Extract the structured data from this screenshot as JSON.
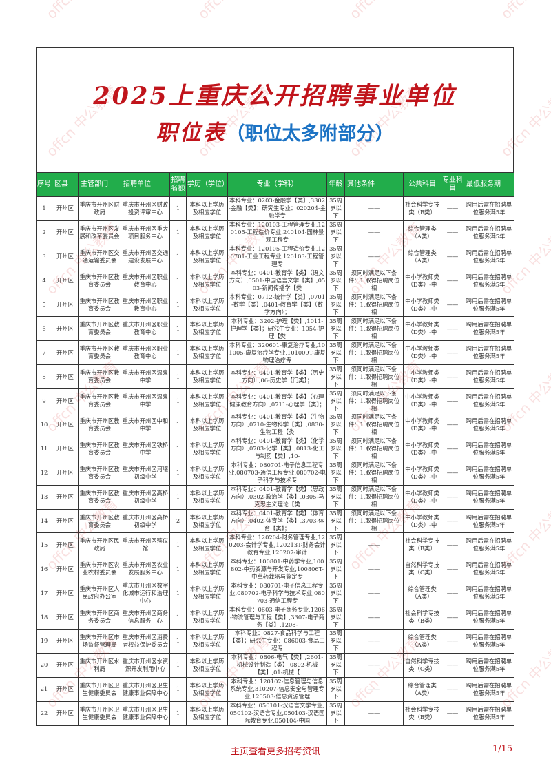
{
  "title": {
    "line1": "2025上重庆公开招聘事业单位",
    "line2": "职位表",
    "subtitle": "（职位太多附部分）"
  },
  "colors": {
    "header_green": "#22ad4b",
    "title_red": "#c0141b",
    "subtitle_blue": "#1d73c4"
  },
  "watermark": "offcn 中公教育",
  "table": {
    "headers": [
      "序号",
      "区县",
      "主管部门",
      "招聘单位",
      "招聘名额",
      "学历（学位）",
      "专业（学科）",
      "年龄",
      "其他条件",
      "公共科目",
      "专业科目",
      "最低服务期"
    ],
    "rows": [
      [
        "1",
        "开州区",
        "重庆市开州区财政局",
        "重庆市开州区财政投资评审中心",
        "1",
        "本科以上学历及相应学位",
        "本科专业：0203-金融学【类】,3302-金融【类】；研究生专业：020204-金融学专",
        "35周岁以下",
        "——",
        "社会科学专技类（B类）",
        "——",
        "聘用后需在招聘单位服务满5年"
      ],
      [
        "2",
        "开州区",
        "重庆市开州区发展和改革委员会",
        "重庆市开州区重大项目服务中心",
        "1",
        "本科以上学历及相应学位",
        "本科专业：120103-工程管理专业,120105-工程造价专业,240104-园林景观工程专",
        "35周岁以下",
        "——",
        "综合管理类（A类）",
        "——",
        "聘用后需在招聘单位服务满5年"
      ],
      [
        "3",
        "开州区",
        "重庆市开州区交通运输委员会",
        "重庆市开州区交通建设发展中心",
        "1",
        "本科以上学历及相应学位",
        "本科专业：120105-工程造价专业,120701-工业工程专业,120103-工程管理专",
        "35周岁以下",
        "——",
        "综合管理类（A类）",
        "——",
        "聘用后需在招聘单位服务满5年"
      ],
      [
        "4",
        "开州区",
        "重庆市开州区教育委员会",
        "重庆市开州区职业教育中心",
        "1",
        "本科以上学历及相应学位",
        "本科专业：0401-教育学【类】（语文方向）,0501-中国语言文学【类】,0503-新闻传播学【类",
        "35周岁以下",
        "须同时满足以下条件：1.取得招聘岗位相",
        "中小学教师类（D类）-中",
        "——",
        "聘用后需在招聘单位服务满5年"
      ],
      [
        "5",
        "开州区",
        "重庆市开州区教育委员会",
        "重庆市开州区职业教育中心",
        "1",
        "本科以上学历及相应学位",
        "本科专业：0712-统计学【类】,0701-数学【类】,0401-教育学【类】（数学方向）；",
        "35周岁以下",
        "须同时满足以下条件：1.取得招聘岗位相",
        "中小学教师类（D类）-中",
        "——",
        "聘用后需在招聘单位服务满5年"
      ],
      [
        "6",
        "开州区",
        "重庆市开州区教育委员会",
        "重庆市开州区职业教育中心",
        "1",
        "本科以上学历及相应学位",
        "本科专业：3202-护理【类】,1011-护理学【类】；研究生专业：1054-护理【类",
        "35周岁以下",
        "须同时满足以下条件：1.取得招聘岗位相",
        "中小学教师类（D类）-中",
        "——",
        "聘用后需在招聘单位服务满5年"
      ],
      [
        "7",
        "开州区",
        "重庆市开州区教育委员会",
        "重庆市开州区职业教育中心",
        "1",
        "本科以上学历及相应学位",
        "本科专业：320601-康复治疗专业,101005-康复治疗学专业,101009T-康复物理治疗专",
        "35周岁以下",
        "须同时满足以下条件：1.取得招聘岗位相",
        "中小学教师类（D类）-中",
        "——",
        "聘用后需在招聘单位服务满5年"
      ],
      [
        "8",
        "开州区",
        "重庆市开州区教育委员会",
        "重庆市开州区温泉中学",
        "1",
        "本科以上学历及相应学位",
        "本科专业：0401-教育学【类】（历史方向）,06-历史学【门类】；",
        "35周岁以下",
        "须同时满足以下条件：1.取得招聘岗位相",
        "中小学教师类（D类）-中",
        "——",
        "聘用后需在招聘单位服务满5年"
      ],
      [
        "9",
        "开州区",
        "重庆市开州区教育委员会",
        "重庆市开州区温泉中学",
        "1",
        "本科以上学历及相应学位",
        "本科专业：0401-教育学【类】（心理健康教育方向）,0711-心理学【类】；",
        "35周岁以下",
        "须同时满足以下条件：1.取得招聘岗位相",
        "中小学教师类（D类）-中",
        "——",
        "聘用后需在招聘单位服务满5年"
      ],
      [
        "10",
        "开州区",
        "重庆市开州区教育委员会",
        "重庆市开州区中和中学",
        "1",
        "本科以上学历及相应学位",
        "本科专业：0401-教育学【类】（生物方向）,0710-生物科学【类】,0830-生物工程【类",
        "35周岁以下",
        "须同时满足以下条件：1.取得招聘岗位相",
        "中小学教师类（D类）-中",
        "——",
        "聘用后需在招聘单位服务满5年"
      ],
      [
        "11",
        "开州区",
        "重庆市开州区教育委员会",
        "重庆市开州区铁桥中学",
        "1",
        "本科以上学历及相应学位",
        "本科专业：0401-教育学【类】（化学方向）,0703-化学【类】,0813-化工与制药【类】,10-",
        "35周岁以下",
        "须同时满足以下条件：1.取得招聘岗位相",
        "中小学教师类（D类）-中",
        "——",
        "聘用后需在招聘单位服务满5年"
      ],
      [
        "12",
        "开州区",
        "重庆市开州区教育委员会",
        "重庆市开州区河堰初级中学",
        "1",
        "本科以上学历及相应学位",
        "本科专业：080701-电子信息工程专业,080703-通信工程专业,080702-电子科学与技术专",
        "35周岁以下",
        "须同时满足以下条件：1.取得招聘岗位相",
        "中小学教师类（D类）-中",
        "——",
        "聘用后需在招聘单位服务满5年"
      ],
      [
        "13",
        "开州区",
        "重庆市开州区教育委员会",
        "重庆市开州区高桥初级中学",
        "1",
        "本科以上学历及相应学位",
        "本科专业：0401-教育学【类】（思政方向）,0302-政治学【类】,0305-马克思主义理论【类",
        "35周岁以下",
        "须同时满足以下条件：1.取得招聘岗位相",
        "中小学教师类（D类）-中",
        "——",
        "聘用后需在招聘单位服务满5年"
      ],
      [
        "14",
        "开州区",
        "重庆市开州区教育委员会",
        "重庆市开州区高桥初级中学",
        "2",
        "本科以上学历及相应学位",
        "本科专业：0401-教育学【类】（体育方向）,0402-体育学【类】,3703-体育【类】；",
        "35周岁以下",
        "须同时满足以下条件：1.取得招聘岗位相",
        "中小学教师类（D类）-中",
        "——",
        "聘用后需在招聘单位服务满5年"
      ],
      [
        "15",
        "开州区",
        "重庆市开州区民政局",
        "重庆市开州区殡仪馆",
        "1",
        "本科以上学历及相应学位",
        "本科专业：120204-财务管理专业,120203-会计学专业,120213T-财务会计教育专业,120207-审计",
        "35周岁以下",
        "——",
        "社会科学专技类（B类）",
        "——",
        "聘用后需在招聘单位服务满5年"
      ],
      [
        "16",
        "开州区",
        "重庆市开州区农业农村委员会",
        "重庆市开州区农业发展服务中心",
        "1",
        "本科以上学历及相应学位",
        "本科专业：100801-中药学专业,100802-中药资源与开发专业,100806T-中草药栽培与鉴定专",
        "35周岁以下",
        "——",
        "自然科学专技类（C类）",
        "——",
        "聘用后需在招聘单位服务满5年"
      ],
      [
        "17",
        "开州区",
        "重庆市开州区人民政府办公室",
        "重庆市开州区数字化城市运行和治理中心",
        "1",
        "本科以上学历及相应学位",
        "本科专业：080701-电子信息工程专业,080702-电子科学与技术专业,080703-通信工程专",
        "35周岁以下",
        "——",
        "综合管理类（A类）",
        "——",
        "聘用后需在招聘单位服务满5年"
      ],
      [
        "18",
        "开州区",
        "重庆市开州区商务委员会",
        "重庆市开州区商务信息服务中心",
        "1",
        "本科以上学历及相应学位",
        "本科专业：0603-电子商务专业,1206-物流管理与工程【类】,3307-电子商务【类】,1208-",
        "35周岁以下",
        "——",
        "社会科学专技类（B类）",
        "——",
        "聘用后需在招聘单位服务满5年"
      ],
      [
        "19",
        "开州区",
        "重庆市开州区市场监督管理局",
        "重庆市开州区消费者权益保护委员会",
        "1",
        "本科以上学历及相应学位",
        "本科专业：0827-食品科学与工程【类】；研究生专业：086003-食品工程专",
        "35周岁以下",
        "——",
        "综合管理类（A类）",
        "——",
        "聘用后需在招聘单位服务满5年"
      ],
      [
        "20",
        "开州区",
        "重庆市开州区水利局",
        "重庆市开州区水资源开发利用中心",
        "1",
        "本科以上学历及相应学位",
        "本科专业：0806-电气【类】,2601-机械设计制造【类】,0802-机械【类】,01-机械【",
        "35周岁以下",
        "——",
        "自然科学专技类（C类）",
        "——",
        "聘用后需在招聘单位服务满5年"
      ],
      [
        "21",
        "开州区",
        "重庆市开州区卫生健康委员会",
        "重庆市开州区卫生健康事业保障中心",
        "1",
        "本科以上学历及相应学位",
        "本科专业：120102-信息管理与信息系统专业,310207-信息安全与管理专业,120503-信息资源管理",
        "35周岁以下",
        "——",
        "综合管理类（A类）",
        "——",
        "聘用后需在招聘单位服务满5年"
      ],
      [
        "22",
        "开州区",
        "重庆市开州区卫生健康委员会",
        "重庆市开州区卫生健康事业保障中心",
        "1",
        "本科以上学历及相应学位",
        "本科专业：050101-汉语言文学专业,050102-汉语言专业,050103-汉语国际教育专业,050104-中国",
        "35周岁以下",
        "——",
        "社会科学专技类（B类）",
        "——",
        "聘用后需在招聘单位服务满5年"
      ]
    ]
  },
  "footer": {
    "link": "主页查看更多招考资讯",
    "page": "1/15"
  }
}
